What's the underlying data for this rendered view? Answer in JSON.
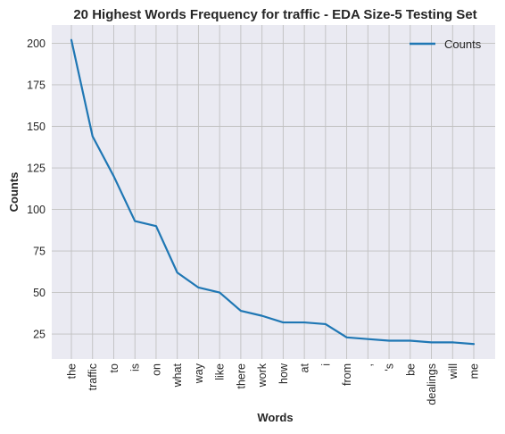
{
  "chart_data": {
    "type": "line",
    "title": "20 Highest Words Frequency for traffic - EDA Size-5 Testing Set",
    "xlabel": "Words",
    "ylabel": "Counts",
    "categories": [
      "the",
      "traffic",
      "to",
      "is",
      "on",
      "what",
      "way",
      "like",
      "there",
      "work",
      "how",
      "at",
      "i",
      "from",
      ",",
      "'s",
      "be",
      "dealings",
      "will",
      "me"
    ],
    "series": [
      {
        "name": "Counts",
        "values": [
          202,
          144,
          120,
          93,
          90,
          62,
          53,
          50,
          39,
          36,
          32,
          32,
          31,
          23,
          22,
          21,
          21,
          20,
          20,
          19
        ]
      }
    ],
    "yticks": [
      25,
      50,
      75,
      100,
      125,
      150,
      175,
      200
    ],
    "ylim": [
      10,
      211
    ],
    "grid": true,
    "legend": "top-right",
    "colors": {
      "background": "#eaeaf2",
      "grid": "#c0c0c0",
      "line": "#1f77b4"
    }
  }
}
